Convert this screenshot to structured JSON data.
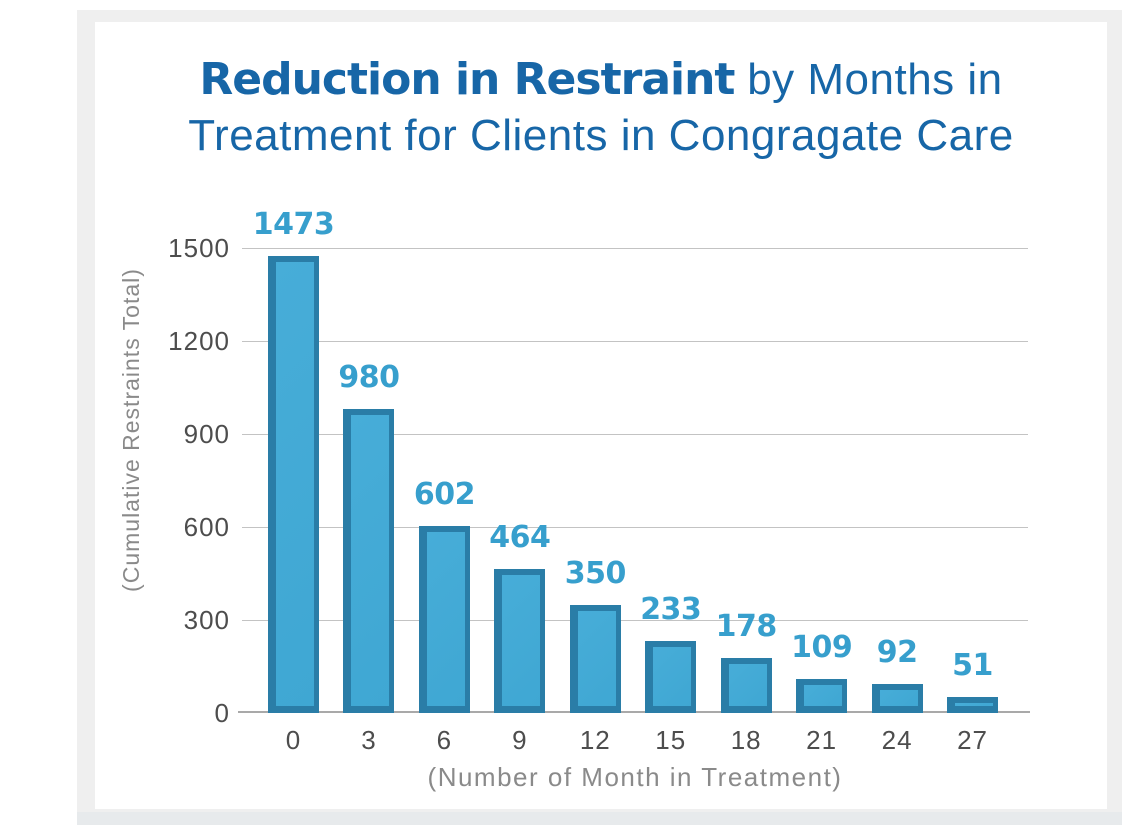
{
  "page": {
    "background_color": "#ffffff",
    "frame_color": "#efefef",
    "bottom_strip_color": "#e7eaec"
  },
  "chart_data": {
    "type": "bar",
    "title_bold": "Reduction in Restraint",
    "title_rest_line1": " by Months in",
    "title_line2": "Treatment for Clients in Congragate Care",
    "title_color": "#1766a7",
    "xlabel": "(Number of Month in Treatment)",
    "ylabel": "(Cumulative Restraints Total)",
    "categories": [
      "0",
      "3",
      "6",
      "9",
      "12",
      "15",
      "18",
      "21",
      "24",
      "27"
    ],
    "values": [
      1473,
      980,
      602,
      464,
      350,
      233,
      178,
      109,
      92,
      51
    ],
    "value_labels": [
      "1473",
      "980",
      "602",
      "464",
      "350",
      "233",
      "178",
      "109",
      "92",
      "51"
    ],
    "yticks": [
      0,
      300,
      600,
      900,
      1200,
      1500
    ],
    "ylim": [
      0,
      1500
    ],
    "grid": true,
    "legend": false,
    "bar_face_color": "#3fa7d3",
    "bar_face_highlight_color": "#47add8",
    "bar_bevel_color": "#2a7da7",
    "value_label_color": "#379fcd",
    "tick_label_color": "#4d4d4d",
    "axis_title_color": "#8a8a8a",
    "gridline_color": "#c3c3c3",
    "baseline_color": "#a9a9a9"
  }
}
